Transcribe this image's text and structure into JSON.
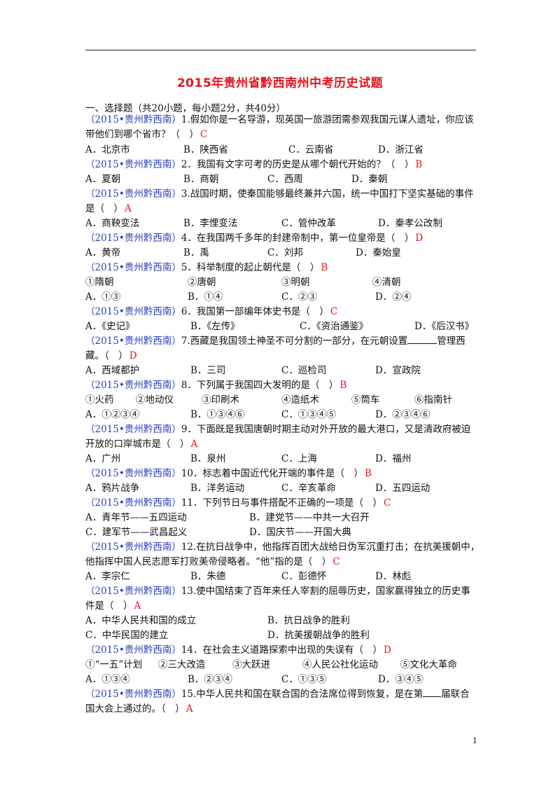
{
  "title": "2015年贵州省黔西南州中考历史试题",
  "section": "一、选择题（共20小题，每小题2分，共40分）",
  "source": "（2015•贵州黔西南）",
  "questions": [
    {
      "stem1": "1.假如你是一名导游，现英国一旅游团需参观我国元谋人遗址，你应该",
      "stem2": "带他们到哪个省市？（　）",
      "answer": "C",
      "options": [
        "A．北京市",
        "B．陕西省",
        "C．云南省",
        "D．浙江省"
      ]
    },
    {
      "stem1": "2．我国有文字可考的历史是从哪个朝代开始的？（　）",
      "answer": "B",
      "options": [
        "A．夏朝",
        "B．商朝",
        "C．西周",
        "D．秦朝"
      ]
    },
    {
      "stem1": "3.战国时期，使秦国能够最终兼并六国，统一中国打下坚实基础的事件",
      "stem2": "是（　）",
      "answer": "A",
      "options": [
        "A．商鞅变法",
        "B．李悝变法",
        "C．管仲改革",
        "D．秦孝公改制"
      ]
    },
    {
      "stem1": "4．在我国两千多年的封建帝制中，第一位皇帝是（　）",
      "answer": "D",
      "options": [
        "A．黄帝",
        "B．禹",
        "C．刘邦",
        "D．秦始皇"
      ]
    },
    {
      "stem1": "5．科举制度的起止朝代是（　）",
      "answer": "B",
      "items": [
        "①隋朝",
        "②唐朝",
        "③明朝",
        "④清朝"
      ],
      "options": [
        "A．①③",
        "B．①④",
        "C．②③",
        "D．②④"
      ]
    },
    {
      "stem1": "6．我国第一部编年体史书是（　）",
      "answer": "C",
      "options": [
        "A．《史记》",
        "B．《左传》",
        "C．《资治通鉴》",
        "D．《后汉书》"
      ]
    },
    {
      "stem1a": "7.西藏是我国领土神圣不可分割的一部分，在元朝设置",
      "stem1b": "管理西",
      "stem2": "藏。（　）",
      "answer": "D",
      "options": [
        "A．西域都护",
        "B．三司",
        "C．巡检司",
        "D．宣政院"
      ]
    },
    {
      "stem1": "8．下列属于我国四大发明的是（　）",
      "answer": "B",
      "items": [
        "①火药",
        "②地动仪",
        "③印刷术",
        "④造纸术",
        "⑤筒车",
        "⑥指南针"
      ],
      "options": [
        "A．①②③④",
        "B．①③④⑥",
        "C．①③④⑤",
        "D．②③④⑥"
      ]
    },
    {
      "stem1": "9．下面既是我国唐朝时期主动对外开放的最大港口，又是清政府被迫",
      "stem2": "开放的口岸城市是（　）",
      "answer": "A",
      "options": [
        "A．广州",
        "B．泉州",
        "C．上海",
        "D．福州"
      ]
    },
    {
      "stem1": "10．标志着中国近代化开端的事件是（　）",
      "answer": "B",
      "options": [
        "A．鸦片战争",
        "B．洋务运动",
        "C．辛亥革命",
        "D．五四运动"
      ]
    },
    {
      "stem1": "11．下列节日与事件搭配不正确的一项是（　）",
      "answer": "C",
      "options": [
        "A．青年节——五四运动",
        "B．建党节——中共一大召开",
        "C．建军节——武昌起义",
        "D．国庆节——开国大典"
      ]
    },
    {
      "stem1": "12.在抗日战争中，他指挥百团大战给日伪军沉重打击；在抗美援朝中，",
      "stem2": "他指挥中国人民志愿军打败美帝侵略者。“他”指的是（　）",
      "answer": "C",
      "options": [
        "A．李宗仁",
        "B．朱德",
        "C．彭德怀",
        "D．林彪"
      ]
    },
    {
      "stem1": "13.使中国结束了百年来任人宰割的屈辱历史，国家赢得独立的历史事",
      "stem2": "件是（　）",
      "answer": "A",
      "options": [
        "A．中华人民共和国的成立",
        "B．抗日战争的胜利",
        "C．中华民国的建立",
        "D．抗美援朝战争的胜利"
      ]
    },
    {
      "stem1": "14．在社会主义道路探索中出现的失误有（　）",
      "answer": "D",
      "items": [
        "①“一五”计划",
        "②三大改造",
        "③大跃进",
        "④人民公社化运动",
        "⑤文化大革命"
      ],
      "options": [
        "A．①③④",
        "B．②③④",
        "C．①③⑤",
        "D．③④⑤"
      ]
    },
    {
      "stem1a": "15.中华人民共和国在联合国的合法席位得到恢复，是在第",
      "stem1b": "届联合",
      "stem2": "国大会上通过的。（　）",
      "answer": "A"
    }
  ],
  "page_number": "1"
}
